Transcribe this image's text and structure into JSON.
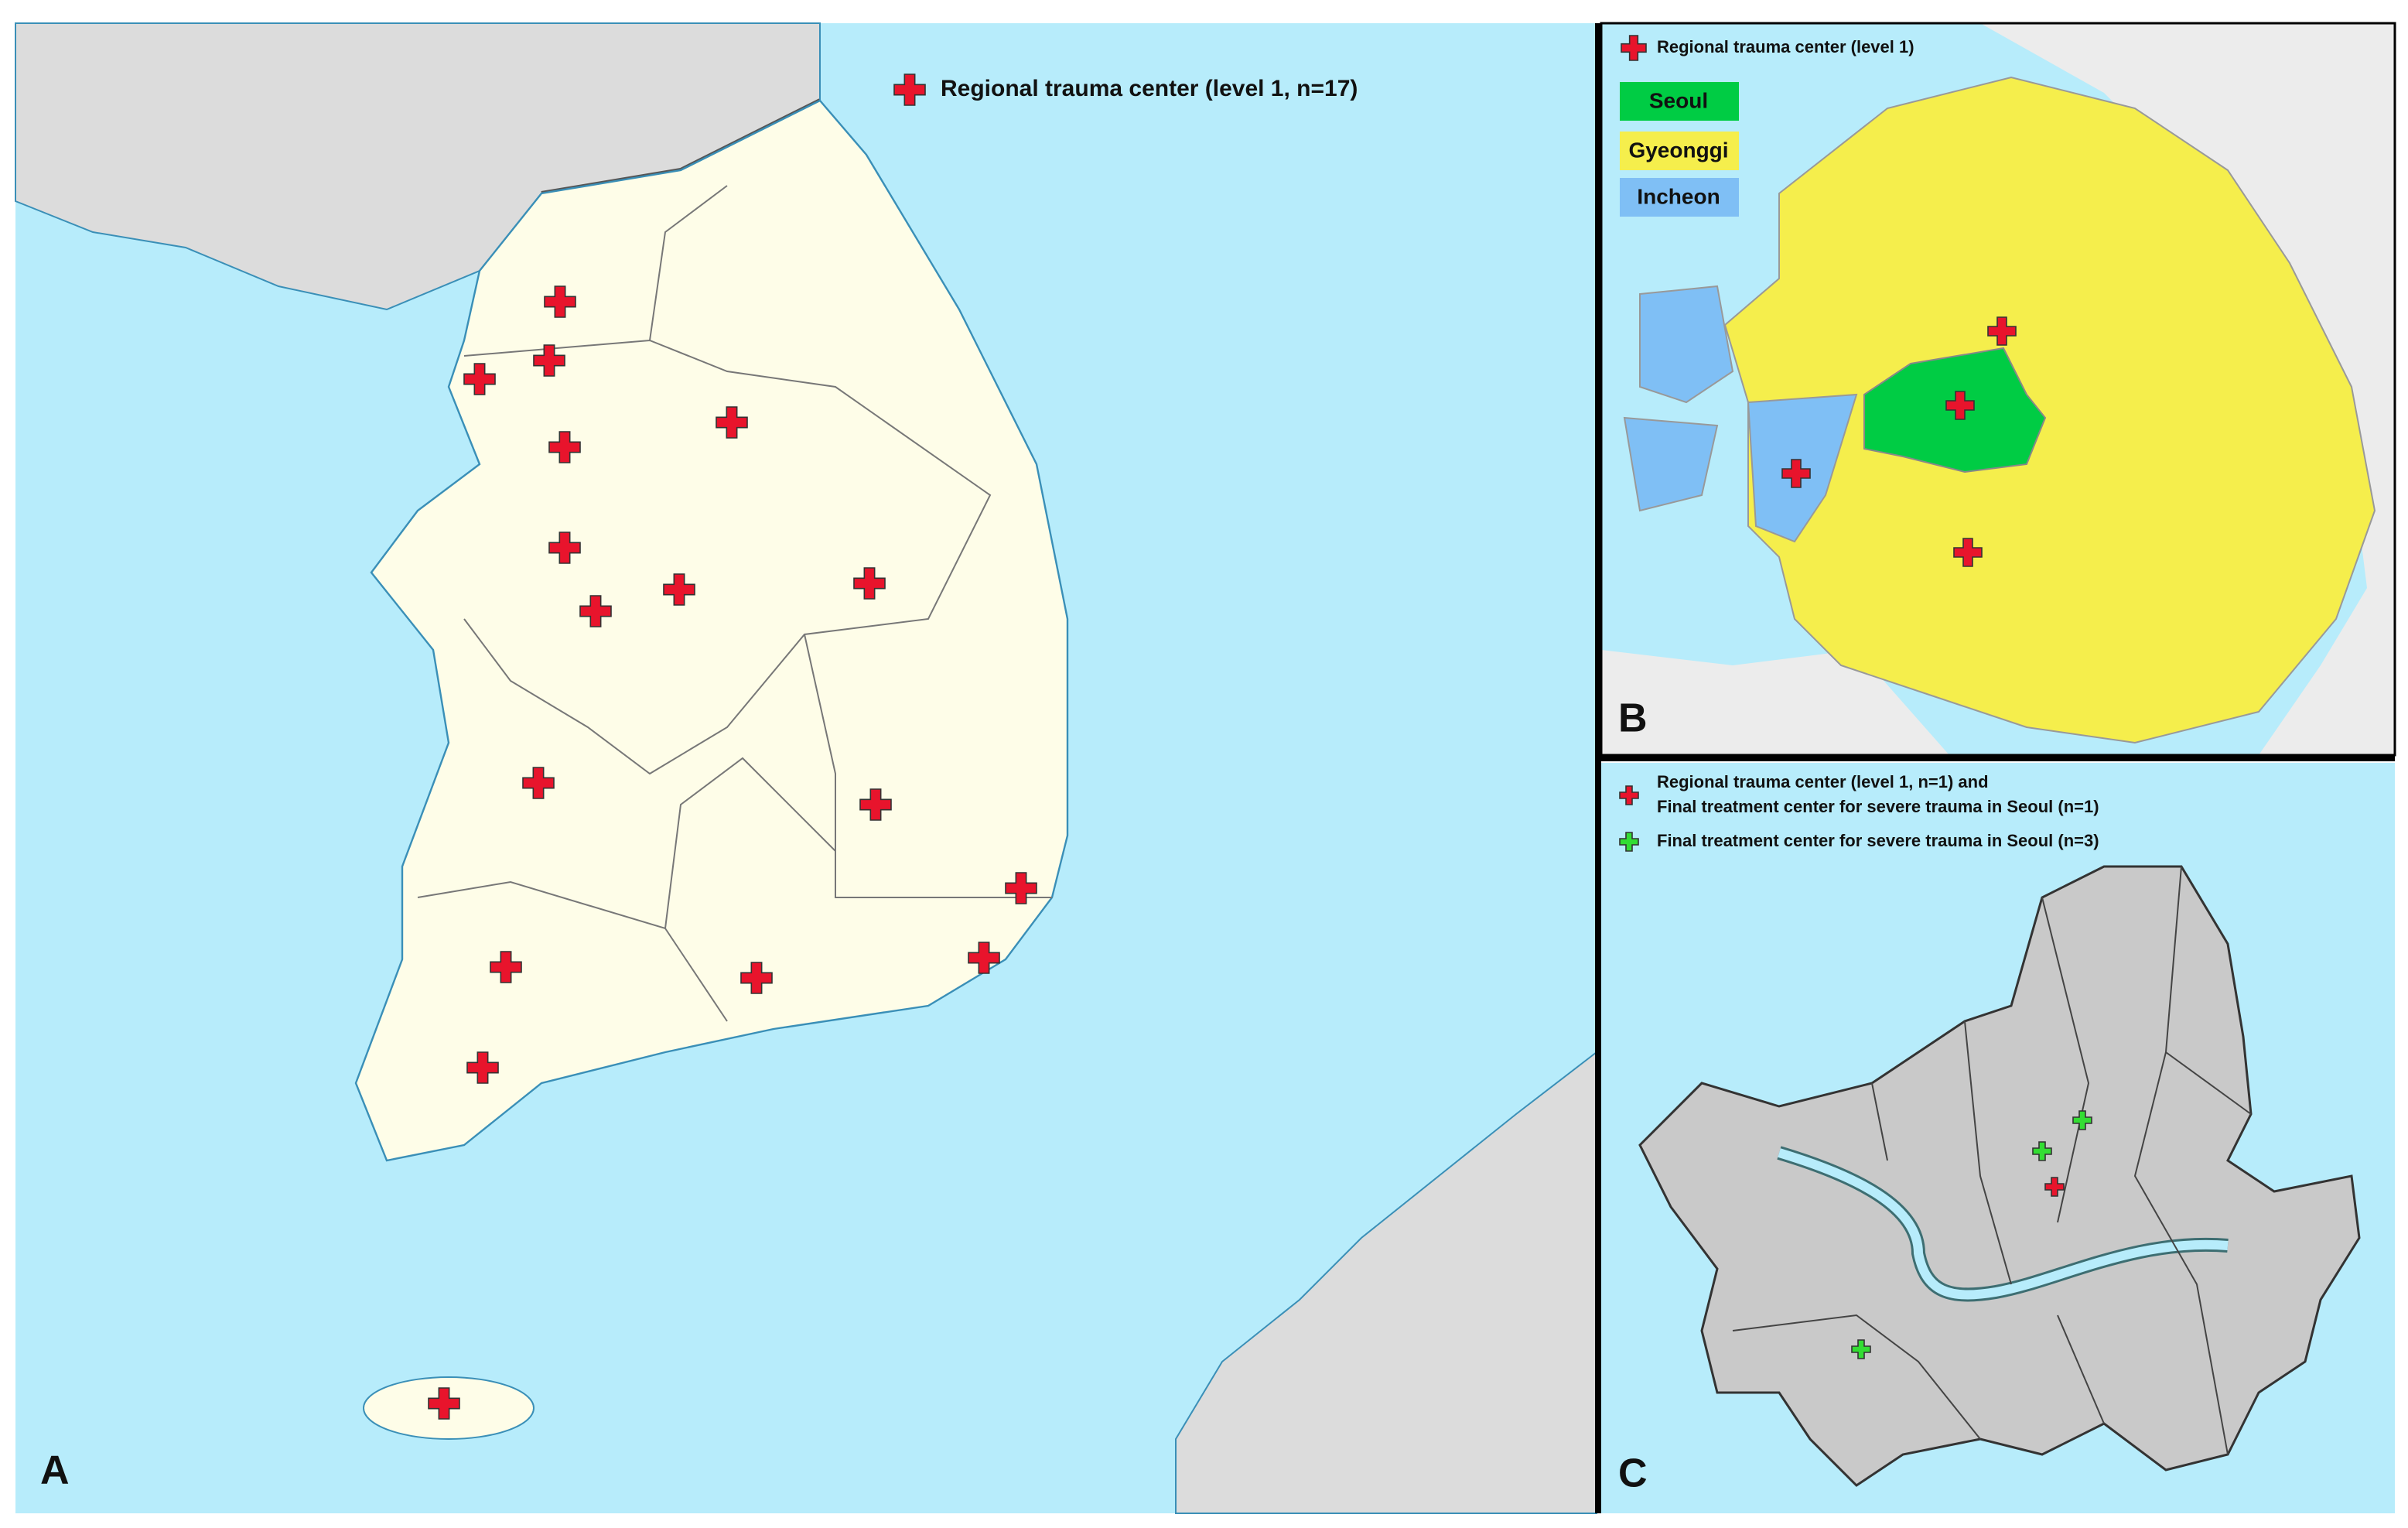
{
  "panel_a": {
    "label": "A",
    "legend": "Regional trauma center (level 1, n=17)"
  },
  "panel_b": {
    "label": "B",
    "legend": "Regional trauma center (level 1)",
    "regions": [
      "Seoul",
      "Gyeonggi",
      "Incheon"
    ]
  },
  "panel_c": {
    "label": "C",
    "legend": [
      {
        "lines": [
          "Regional trauma center (level 1, n=1) and",
          "Final treatment center for severe trauma in Seoul (n=1)"
        ]
      },
      {
        "lines": [
          "Final treatment center for severe trauma in Seoul (n=3)"
        ]
      }
    ]
  }
}
